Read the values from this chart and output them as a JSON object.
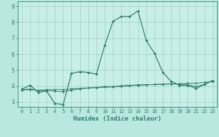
{
  "title": "",
  "xlabel": "Humidex (Indice chaleur)",
  "xlim": [
    -0.5,
    23.5
  ],
  "ylim": [
    2.7,
    9.3
  ],
  "xticks": [
    0,
    1,
    2,
    3,
    4,
    5,
    6,
    7,
    8,
    9,
    10,
    11,
    12,
    13,
    14,
    15,
    16,
    17,
    18,
    19,
    20,
    21,
    22,
    23
  ],
  "yticks": [
    3,
    4,
    5,
    6,
    7,
    8,
    9
  ],
  "bg_color": "#b8e8e0",
  "plot_bg": "#c8eee8",
  "line_color": "#2e7d6e",
  "grid_color": "#9ecfca",
  "line1_x": [
    0,
    1,
    2,
    3,
    4,
    5,
    6,
    7,
    8,
    9,
    10,
    11,
    12,
    13,
    14,
    15,
    16,
    17,
    18,
    19,
    20,
    21,
    22,
    23
  ],
  "line1_y": [
    3.8,
    4.05,
    3.6,
    3.7,
    2.9,
    2.85,
    4.8,
    4.9,
    4.85,
    4.75,
    6.55,
    8.05,
    8.35,
    8.35,
    8.7,
    6.85,
    6.05,
    4.85,
    4.3,
    4.05,
    4.05,
    3.85,
    4.1,
    4.35
  ],
  "line2_x": [
    0,
    1,
    2,
    3,
    4,
    5,
    6,
    7,
    8,
    9,
    10,
    11,
    12,
    13,
    14,
    15,
    16,
    17,
    18,
    19,
    20,
    21,
    22,
    23
  ],
  "line2_y": [
    3.78,
    3.82,
    3.72,
    3.72,
    3.68,
    3.65,
    3.75,
    3.82,
    3.88,
    3.92,
    3.97,
    3.97,
    4.02,
    4.05,
    4.08,
    4.08,
    4.1,
    4.12,
    4.13,
    4.12,
    4.08,
    3.97,
    4.1,
    4.35
  ],
  "line3_x": [
    0,
    1,
    2,
    3,
    4,
    5,
    6,
    7,
    8,
    9,
    10,
    11,
    12,
    13,
    14,
    15,
    16,
    17,
    18,
    19,
    20,
    21,
    22,
    23
  ],
  "line3_y": [
    3.75,
    3.78,
    3.73,
    3.78,
    3.78,
    3.78,
    3.83,
    3.85,
    3.88,
    3.9,
    3.93,
    3.95,
    3.98,
    4.02,
    4.05,
    4.08,
    4.1,
    4.12,
    4.14,
    4.14,
    4.18,
    4.18,
    4.23,
    4.28
  ]
}
